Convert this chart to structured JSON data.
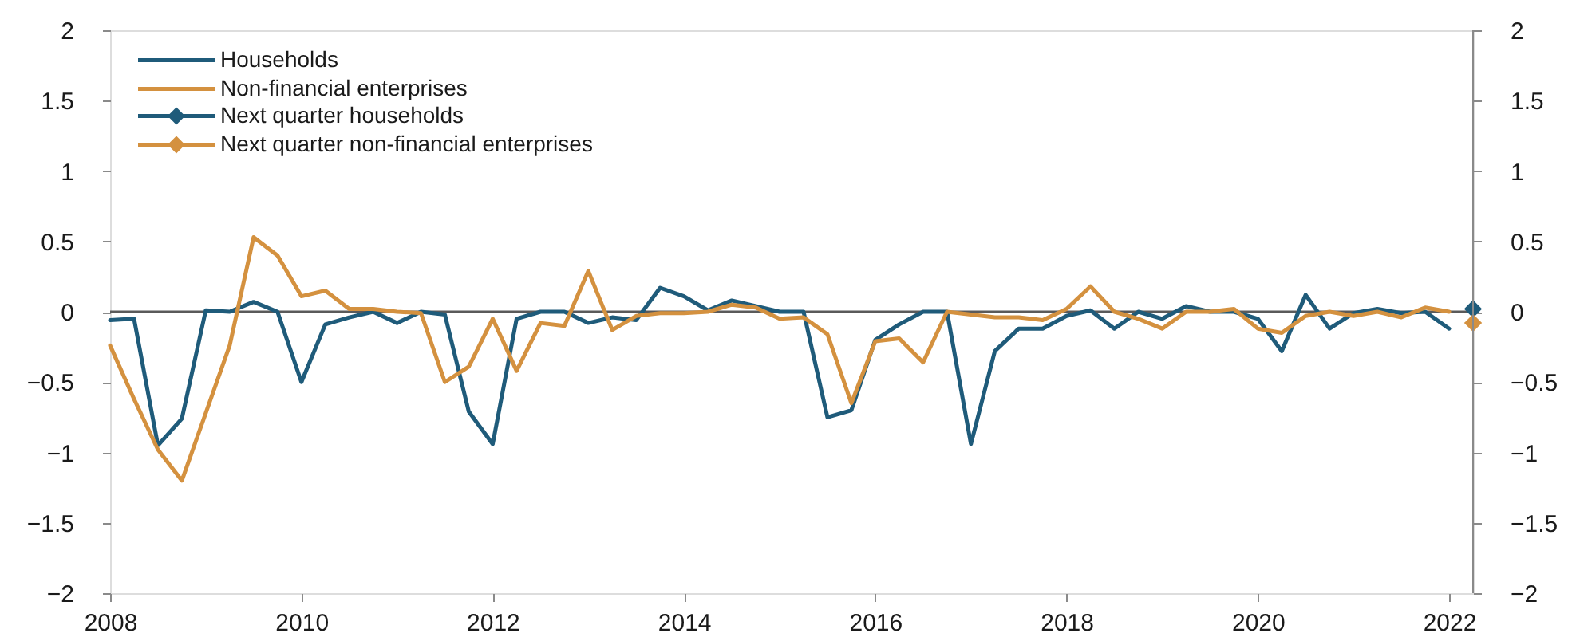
{
  "chart_data": {
    "type": "line",
    "x": [
      2008,
      2008.25,
      2008.5,
      2008.75,
      2009,
      2009.25,
      2009.5,
      2009.75,
      2010,
      2010.25,
      2010.5,
      2010.75,
      2011,
      2011.25,
      2011.5,
      2011.75,
      2012,
      2012.25,
      2012.5,
      2012.75,
      2013,
      2013.25,
      2013.5,
      2013.75,
      2014,
      2014.25,
      2014.5,
      2014.75,
      2015,
      2015.25,
      2015.5,
      2015.75,
      2016,
      2016.25,
      2016.5,
      2016.75,
      2017,
      2017.25,
      2017.5,
      2017.75,
      2018,
      2018.25,
      2018.5,
      2018.75,
      2019,
      2019.25,
      2019.5,
      2019.75,
      2020,
      2020.25,
      2020.5,
      2020.75,
      2021,
      2021.25,
      2021.5,
      2021.75,
      2022
    ],
    "series": [
      {
        "name": "Households",
        "color": "#1f5b7a",
        "values": [
          -0.06,
          -0.05,
          -0.95,
          -0.76,
          0.01,
          0.0,
          0.07,
          0.0,
          -0.5,
          -0.09,
          -0.04,
          0.0,
          -0.08,
          0.0,
          -0.02,
          -0.71,
          -0.94,
          -0.05,
          0.0,
          0.0,
          -0.08,
          -0.04,
          -0.06,
          0.17,
          0.11,
          0.01,
          0.08,
          0.04,
          0.0,
          0.0,
          -0.75,
          -0.7,
          -0.2,
          -0.09,
          0.0,
          0.0,
          -0.94,
          -0.28,
          -0.12,
          -0.12,
          -0.03,
          0.01,
          -0.12,
          0.0,
          -0.05,
          0.04,
          0.0,
          0.0,
          -0.05,
          -0.28,
          0.12,
          -0.12,
          -0.01,
          0.02,
          -0.01,
          0.0,
          -0.12
        ]
      },
      {
        "name": "Non-financial enterprises",
        "color": "#d4913f",
        "values": [
          -0.24,
          -0.62,
          -0.98,
          -1.2,
          -0.72,
          -0.24,
          0.53,
          0.4,
          0.11,
          0.15,
          0.02,
          0.02,
          0.0,
          -0.01,
          -0.5,
          -0.39,
          -0.05,
          -0.42,
          -0.08,
          -0.1,
          0.29,
          -0.13,
          -0.03,
          -0.01,
          -0.01,
          0.0,
          0.05,
          0.03,
          -0.05,
          -0.04,
          -0.16,
          -0.65,
          -0.21,
          -0.19,
          -0.36,
          0.0,
          -0.02,
          -0.04,
          -0.04,
          -0.06,
          0.02,
          0.18,
          0.0,
          -0.05,
          -0.12,
          0.0,
          0.0,
          0.02,
          -0.12,
          -0.15,
          -0.03,
          0.0,
          -0.03,
          0.0,
          -0.04,
          0.03,
          0.0
        ]
      },
      {
        "name": "Next quarter households",
        "color": "#1f5b7a",
        "marker": "diamond",
        "x": [
          2022.25
        ],
        "values": [
          0.02
        ]
      },
      {
        "name": "Next quarter non-financial enterprises",
        "color": "#d4913f",
        "marker": "diamond",
        "x": [
          2022.25
        ],
        "values": [
          -0.08
        ]
      }
    ],
    "xlim": [
      2008,
      2022.25
    ],
    "xticks": [
      2008,
      2010,
      2012,
      2014,
      2016,
      2018,
      2020,
      2022
    ],
    "ylim": [
      -2,
      2
    ],
    "yticks": [
      -2,
      -1.5,
      -1,
      -0.5,
      0,
      0.5,
      1,
      1.5,
      2
    ],
    "y2lim": [
      -2,
      2
    ],
    "y2ticks": [
      -2,
      -1.5,
      -1,
      -0.5,
      0,
      0.5,
      1,
      1.5,
      2
    ],
    "ref_lines": [
      {
        "axis": "y",
        "value": 0,
        "color": "#5a5a5a"
      }
    ],
    "legend": "top left"
  }
}
